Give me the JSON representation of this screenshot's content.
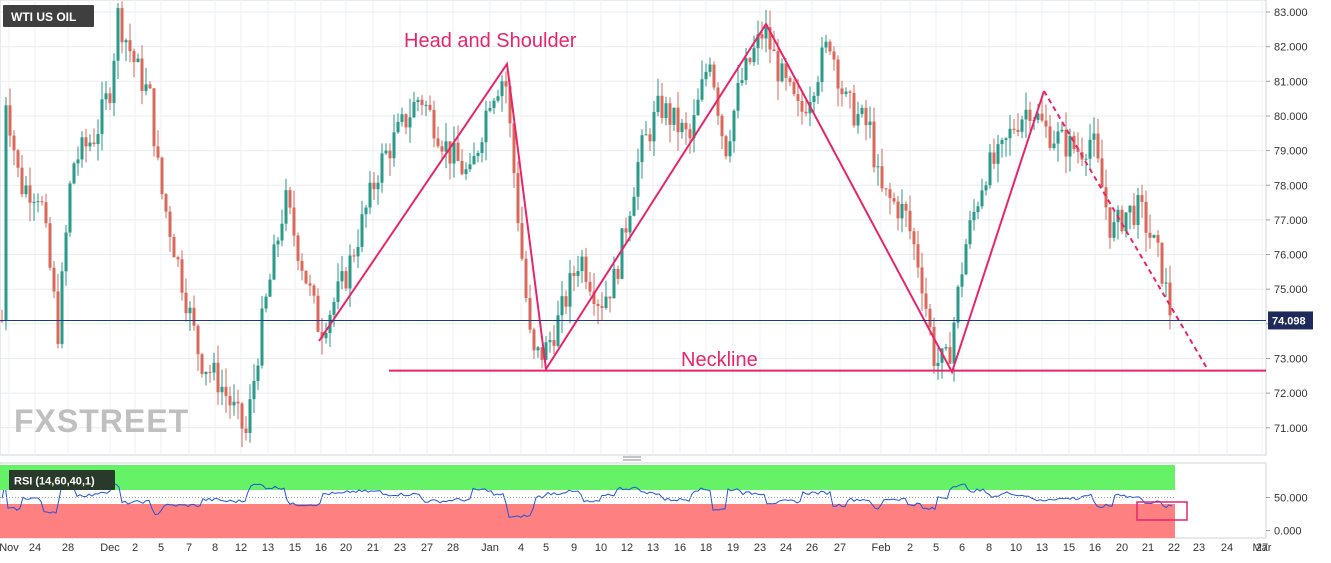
{
  "chart_data": [
    {
      "type": "candlestick",
      "symbol": "WTI US OIL",
      "ylim": [
        70.2,
        83.3
      ],
      "y_ticks": [
        "71.000",
        "72.000",
        "73.000",
        "74.000",
        "75.000",
        "76.000",
        "77.000",
        "78.000",
        "79.000",
        "80.000",
        "81.000",
        "82.000",
        "83.000"
      ],
      "x_tick_labels": [
        "Nov",
        "24",
        "28",
        "Dec",
        "2",
        "5",
        "7",
        "8",
        "12",
        "13",
        "15",
        "16",
        "20",
        "21",
        "23",
        "27",
        "28",
        "Jan",
        "4",
        "5",
        "9",
        "10",
        "12",
        "13",
        "16",
        "18",
        "19",
        "23",
        "24",
        "26",
        "27",
        "Feb",
        "2",
        "5",
        "6",
        "8",
        "10",
        "13",
        "15",
        "16",
        "20",
        "21",
        "22",
        "23",
        "24",
        "27",
        "Mar"
      ],
      "current_price": "74.098",
      "annotations": [
        "Head and Shoulder",
        "Neckline"
      ],
      "pattern_points": [
        {
          "x": "16",
          "y": 73.5
        },
        {
          "x": "4",
          "y": 81.5
        },
        {
          "x": "5",
          "y": 72.6
        },
        {
          "x": "23",
          "y": 82.6
        },
        {
          "x": "6",
          "y": 72.6
        },
        {
          "x": "13",
          "y": 80.7
        }
      ],
      "neckline": 72.65,
      "projection": {
        "from_x": "13",
        "from_y": 80.7,
        "to_x": "24",
        "to_y": 72.6
      },
      "colors": {
        "up": "#2a9a8a",
        "down": "#d9695a",
        "pattern": "#e8256a",
        "price_line": "#1e3a8a",
        "price_tag": "#1e2a5a"
      }
    },
    {
      "type": "line",
      "indicator": "RSI (14,60,40,1)",
      "ylim": [
        0,
        85
      ],
      "y_ticks": [
        "0.000",
        "50.000"
      ],
      "upper_level": 60,
      "lower_level": 40,
      "colors": {
        "upper_band": "#66f266",
        "lower_band": "#ff8080",
        "line": "#2255dd",
        "marker_box": "#e8256a"
      }
    }
  ],
  "watermark": "FXSTREET"
}
